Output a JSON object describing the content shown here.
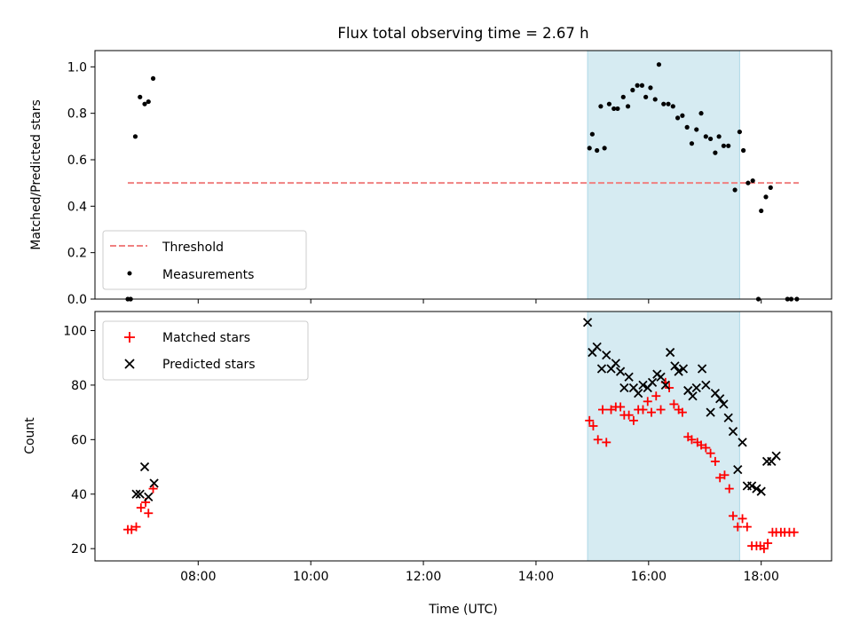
{
  "title": "Flux total observing time = 2.67 h",
  "xlabel": "Time (UTC)",
  "x_ticks": [
    "08:00",
    "10:00",
    "12:00",
    "14:00",
    "16:00",
    "18:00"
  ],
  "colors": {
    "measurements": "#000000",
    "threshold": "#f08080",
    "highlight": "#add8e6",
    "matched": "#ff0000",
    "predicted": "#000000"
  },
  "chart_data": [
    {
      "type": "scatter",
      "ylabel": "Matched/Predicted stars",
      "xlim": [
        "06:10",
        "19:15"
      ],
      "ylim": [
        0,
        1.07
      ],
      "y_ticks": [
        "0.0",
        "0.2",
        "0.4",
        "0.6",
        "0.8",
        "1.0"
      ],
      "highlight_span": [
        "14:55",
        "17:37"
      ],
      "legend": {
        "position": "lower-left",
        "entries": [
          "Threshold",
          "Measurements"
        ]
      },
      "threshold": {
        "name": "Threshold",
        "value": 0.5,
        "x": [
          "06:45",
          "18:40"
        ]
      },
      "series": [
        {
          "name": "Measurements",
          "points": [
            [
              "06:45",
              0
            ],
            [
              "06:48",
              0
            ],
            [
              "06:53",
              0.7
            ],
            [
              "06:58",
              0.87
            ],
            [
              "07:03",
              0.84
            ],
            [
              "07:07",
              0.85
            ],
            [
              "07:12",
              0.95
            ],
            [
              "14:57",
              0.65
            ],
            [
              "15:00",
              0.71
            ],
            [
              "15:05",
              0.64
            ],
            [
              "15:09",
              0.83
            ],
            [
              "15:13",
              0.65
            ],
            [
              "15:18",
              0.84
            ],
            [
              "15:23",
              0.82
            ],
            [
              "15:27",
              0.82
            ],
            [
              "15:33",
              0.87
            ],
            [
              "15:38",
              0.83
            ],
            [
              "15:43",
              0.9
            ],
            [
              "15:48",
              0.92
            ],
            [
              "15:53",
              0.92
            ],
            [
              "15:57",
              0.87
            ],
            [
              "16:02",
              0.91
            ],
            [
              "16:07",
              0.86
            ],
            [
              "16:11",
              1.01
            ],
            [
              "16:16",
              0.84
            ],
            [
              "16:21",
              0.84
            ],
            [
              "16:26",
              0.83
            ],
            [
              "16:31",
              0.78
            ],
            [
              "16:36",
              0.79
            ],
            [
              "16:41",
              0.74
            ],
            [
              "16:46",
              0.67
            ],
            [
              "16:51",
              0.73
            ],
            [
              "16:56",
              0.8
            ],
            [
              "17:01",
              0.7
            ],
            [
              "17:06",
              0.69
            ],
            [
              "17:11",
              0.63
            ],
            [
              "17:15",
              0.7
            ],
            [
              "17:20",
              0.66
            ],
            [
              "17:25",
              0.66
            ],
            [
              "17:32",
              0.47
            ],
            [
              "17:37",
              0.72
            ],
            [
              "17:41",
              0.64
            ],
            [
              "17:46",
              0.5
            ],
            [
              "17:51",
              0.51
            ],
            [
              "17:57",
              0
            ],
            [
              "18:00",
              0.38
            ],
            [
              "18:05",
              0.44
            ],
            [
              "18:10",
              0.48
            ],
            [
              "18:28",
              0
            ],
            [
              "18:32",
              0
            ],
            [
              "18:38",
              0
            ]
          ]
        }
      ]
    },
    {
      "type": "scatter",
      "ylabel": "Count",
      "xlim": [
        "06:10",
        "19:15"
      ],
      "ylim": [
        15.5,
        107
      ],
      "y_ticks": [
        "20",
        "40",
        "60",
        "80",
        "100"
      ],
      "highlight_span": [
        "14:55",
        "17:37"
      ],
      "legend": {
        "position": "upper-left",
        "entries": [
          "Matched stars",
          "Predicted stars"
        ]
      },
      "series": [
        {
          "name": "Matched stars",
          "marker": "plus",
          "points": [
            [
              "06:45",
              27
            ],
            [
              "06:49",
              27
            ],
            [
              "06:54",
              28
            ],
            [
              "06:59",
              35
            ],
            [
              "07:04",
              37
            ],
            [
              "07:07",
              33
            ],
            [
              "07:12",
              42
            ],
            [
              "14:57",
              67
            ],
            [
              "15:01",
              65
            ],
            [
              "15:06",
              60
            ],
            [
              "15:11",
              71
            ],
            [
              "15:15",
              59
            ],
            [
              "15:20",
              71
            ],
            [
              "15:25",
              72
            ],
            [
              "15:30",
              72
            ],
            [
              "15:34",
              69
            ],
            [
              "15:39",
              69
            ],
            [
              "15:44",
              67
            ],
            [
              "15:49",
              71
            ],
            [
              "15:54",
              71
            ],
            [
              "15:59",
              74
            ],
            [
              "16:03",
              70
            ],
            [
              "16:08",
              76
            ],
            [
              "16:13",
              71
            ],
            [
              "16:18",
              81
            ],
            [
              "16:22",
              79
            ],
            [
              "16:27",
              73
            ],
            [
              "16:32",
              71
            ],
            [
              "16:36",
              70
            ],
            [
              "16:42",
              61
            ],
            [
              "16:46",
              60
            ],
            [
              "16:52",
              59
            ],
            [
              "16:56",
              58
            ],
            [
              "17:01",
              57
            ],
            [
              "17:06",
              55
            ],
            [
              "17:11",
              52
            ],
            [
              "17:16",
              46
            ],
            [
              "17:21",
              47
            ],
            [
              "17:26",
              42
            ],
            [
              "17:30",
              32
            ],
            [
              "17:35",
              28
            ],
            [
              "17:40",
              31
            ],
            [
              "17:45",
              28
            ],
            [
              "17:50",
              21
            ],
            [
              "17:55",
              21
            ],
            [
              "17:59",
              21
            ],
            [
              "18:03",
              20
            ],
            [
              "18:07",
              22
            ],
            [
              "18:12",
              26
            ],
            [
              "18:16",
              26
            ],
            [
              "18:21",
              26
            ],
            [
              "18:25",
              26
            ],
            [
              "18:30",
              26
            ],
            [
              "18:35",
              26
            ]
          ]
        },
        {
          "name": "Predicted stars",
          "marker": "x",
          "points": [
            [
              "06:54",
              40
            ],
            [
              "06:58",
              40
            ],
            [
              "07:03",
              50
            ],
            [
              "07:07",
              39
            ],
            [
              "07:13",
              44
            ],
            [
              "14:55",
              103
            ],
            [
              "15:00",
              92
            ],
            [
              "15:05",
              94
            ],
            [
              "15:10",
              86
            ],
            [
              "15:15",
              91
            ],
            [
              "15:20",
              86
            ],
            [
              "15:25",
              88
            ],
            [
              "15:30",
              85
            ],
            [
              "15:34",
              79
            ],
            [
              "15:39",
              83
            ],
            [
              "15:44",
              79
            ],
            [
              "15:49",
              77
            ],
            [
              "15:54",
              80
            ],
            [
              "15:59",
              79
            ],
            [
              "16:04",
              81
            ],
            [
              "16:09",
              84
            ],
            [
              "16:13",
              83
            ],
            [
              "16:18",
              80
            ],
            [
              "16:23",
              92
            ],
            [
              "16:28",
              87
            ],
            [
              "16:32",
              85
            ],
            [
              "16:37",
              86
            ],
            [
              "16:42",
              78
            ],
            [
              "16:47",
              76
            ],
            [
              "16:51",
              79
            ],
            [
              "16:57",
              86
            ],
            [
              "17:01",
              80
            ],
            [
              "17:06",
              70
            ],
            [
              "17:11",
              77
            ],
            [
              "17:16",
              75
            ],
            [
              "17:20",
              73
            ],
            [
              "17:25",
              68
            ],
            [
              "17:30",
              63
            ],
            [
              "17:35",
              49
            ],
            [
              "17:40",
              59
            ],
            [
              "17:45",
              43
            ],
            [
              "17:50",
              43
            ],
            [
              "17:55",
              42
            ],
            [
              "18:00",
              41
            ],
            [
              "18:06",
              52
            ],
            [
              "18:11",
              52
            ],
            [
              "18:16",
              54
            ]
          ]
        }
      ]
    }
  ]
}
